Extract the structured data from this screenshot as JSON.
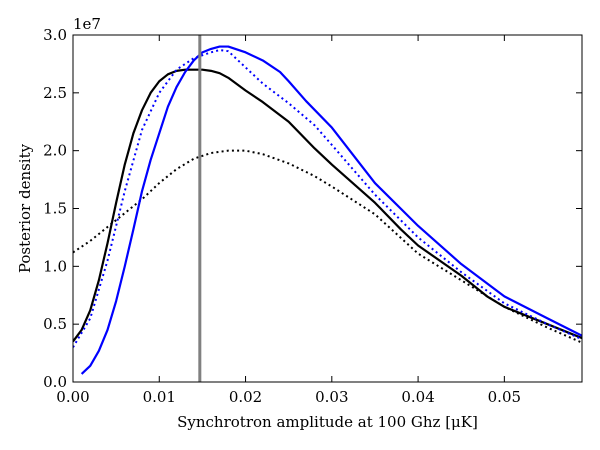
{
  "chart_data": {
    "type": "line",
    "xlabel": "Synchrotron amplitude at 100 Ghz [μK]",
    "ylabel": "Posterior density",
    "y_offset_label": "1e7",
    "xlim": [
      0.0,
      0.059
    ],
    "ylim": [
      0.0,
      3.0
    ],
    "x_ticks": [
      0.0,
      0.01,
      0.02,
      0.03,
      0.04,
      0.05
    ],
    "x_tick_labels": [
      "0.00",
      "0.01",
      "0.02",
      "0.03",
      "0.04",
      "0.05"
    ],
    "y_ticks": [
      0.0,
      0.5,
      1.0,
      1.5,
      2.0,
      2.5,
      3.0
    ],
    "y_tick_labels": [
      "0.0",
      "0.5",
      "1.0",
      "1.5",
      "2.0",
      "2.5",
      "3.0"
    ],
    "grid": false,
    "legend": "none",
    "series": [
      {
        "color": "#000000",
        "style": "solid",
        "points": [
          [
            0.0,
            0.35
          ],
          [
            0.001,
            0.45
          ],
          [
            0.002,
            0.62
          ],
          [
            0.003,
            0.88
          ],
          [
            0.004,
            1.2
          ],
          [
            0.005,
            1.55
          ],
          [
            0.006,
            1.88
          ],
          [
            0.007,
            2.15
          ],
          [
            0.008,
            2.35
          ],
          [
            0.009,
            2.5
          ],
          [
            0.01,
            2.6
          ],
          [
            0.011,
            2.66
          ],
          [
            0.012,
            2.69
          ],
          [
            0.013,
            2.7
          ],
          [
            0.014,
            2.7
          ],
          [
            0.015,
            2.7
          ],
          [
            0.016,
            2.69
          ],
          [
            0.017,
            2.67
          ],
          [
            0.018,
            2.63
          ],
          [
            0.02,
            2.52
          ],
          [
            0.022,
            2.42
          ],
          [
            0.025,
            2.25
          ],
          [
            0.028,
            2.02
          ],
          [
            0.03,
            1.88
          ],
          [
            0.035,
            1.55
          ],
          [
            0.038,
            1.32
          ],
          [
            0.04,
            1.18
          ],
          [
            0.045,
            0.92
          ],
          [
            0.048,
            0.74
          ],
          [
            0.05,
            0.65
          ],
          [
            0.055,
            0.5
          ],
          [
            0.059,
            0.38
          ]
        ]
      },
      {
        "color": "#000000",
        "style": "dotted",
        "points": [
          [
            0.0,
            1.12
          ],
          [
            0.002,
            1.22
          ],
          [
            0.004,
            1.34
          ],
          [
            0.006,
            1.46
          ],
          [
            0.008,
            1.58
          ],
          [
            0.01,
            1.72
          ],
          [
            0.012,
            1.84
          ],
          [
            0.014,
            1.93
          ],
          [
            0.016,
            1.98
          ],
          [
            0.018,
            2.0
          ],
          [
            0.02,
            2.0
          ],
          [
            0.022,
            1.97
          ],
          [
            0.025,
            1.89
          ],
          [
            0.028,
            1.78
          ],
          [
            0.03,
            1.69
          ],
          [
            0.035,
            1.45
          ],
          [
            0.04,
            1.11
          ],
          [
            0.045,
            0.88
          ],
          [
            0.05,
            0.65
          ],
          [
            0.055,
            0.47
          ],
          [
            0.059,
            0.34
          ]
        ]
      },
      {
        "color": "#0000ff",
        "style": "solid",
        "points": [
          [
            0.001,
            0.07
          ],
          [
            0.002,
            0.14
          ],
          [
            0.003,
            0.27
          ],
          [
            0.004,
            0.45
          ],
          [
            0.005,
            0.7
          ],
          [
            0.006,
            1.0
          ],
          [
            0.007,
            1.32
          ],
          [
            0.008,
            1.65
          ],
          [
            0.009,
            1.92
          ],
          [
            0.01,
            2.15
          ],
          [
            0.011,
            2.38
          ],
          [
            0.012,
            2.55
          ],
          [
            0.013,
            2.68
          ],
          [
            0.014,
            2.78
          ],
          [
            0.015,
            2.85
          ],
          [
            0.016,
            2.88
          ],
          [
            0.017,
            2.9
          ],
          [
            0.018,
            2.9
          ],
          [
            0.02,
            2.85
          ],
          [
            0.022,
            2.78
          ],
          [
            0.024,
            2.68
          ],
          [
            0.025,
            2.6
          ],
          [
            0.027,
            2.43
          ],
          [
            0.03,
            2.2
          ],
          [
            0.035,
            1.72
          ],
          [
            0.04,
            1.35
          ],
          [
            0.045,
            1.02
          ],
          [
            0.05,
            0.74
          ],
          [
            0.055,
            0.55
          ],
          [
            0.059,
            0.4
          ]
        ]
      },
      {
        "color": "#0000ff",
        "style": "dotted",
        "points": [
          [
            0.0,
            0.3
          ],
          [
            0.002,
            0.55
          ],
          [
            0.004,
            1.05
          ],
          [
            0.006,
            1.65
          ],
          [
            0.008,
            2.18
          ],
          [
            0.01,
            2.5
          ],
          [
            0.012,
            2.7
          ],
          [
            0.014,
            2.8
          ],
          [
            0.016,
            2.85
          ],
          [
            0.017,
            2.87
          ],
          [
            0.018,
            2.86
          ],
          [
            0.02,
            2.72
          ],
          [
            0.022,
            2.58
          ],
          [
            0.025,
            2.41
          ],
          [
            0.028,
            2.22
          ],
          [
            0.03,
            2.05
          ],
          [
            0.035,
            1.62
          ],
          [
            0.04,
            1.25
          ],
          [
            0.045,
            0.95
          ],
          [
            0.05,
            0.68
          ],
          [
            0.055,
            0.5
          ],
          [
            0.059,
            0.37
          ]
        ]
      }
    ],
    "vertical_lines": [
      {
        "x": 0.0147,
        "color": "#808080"
      }
    ]
  }
}
